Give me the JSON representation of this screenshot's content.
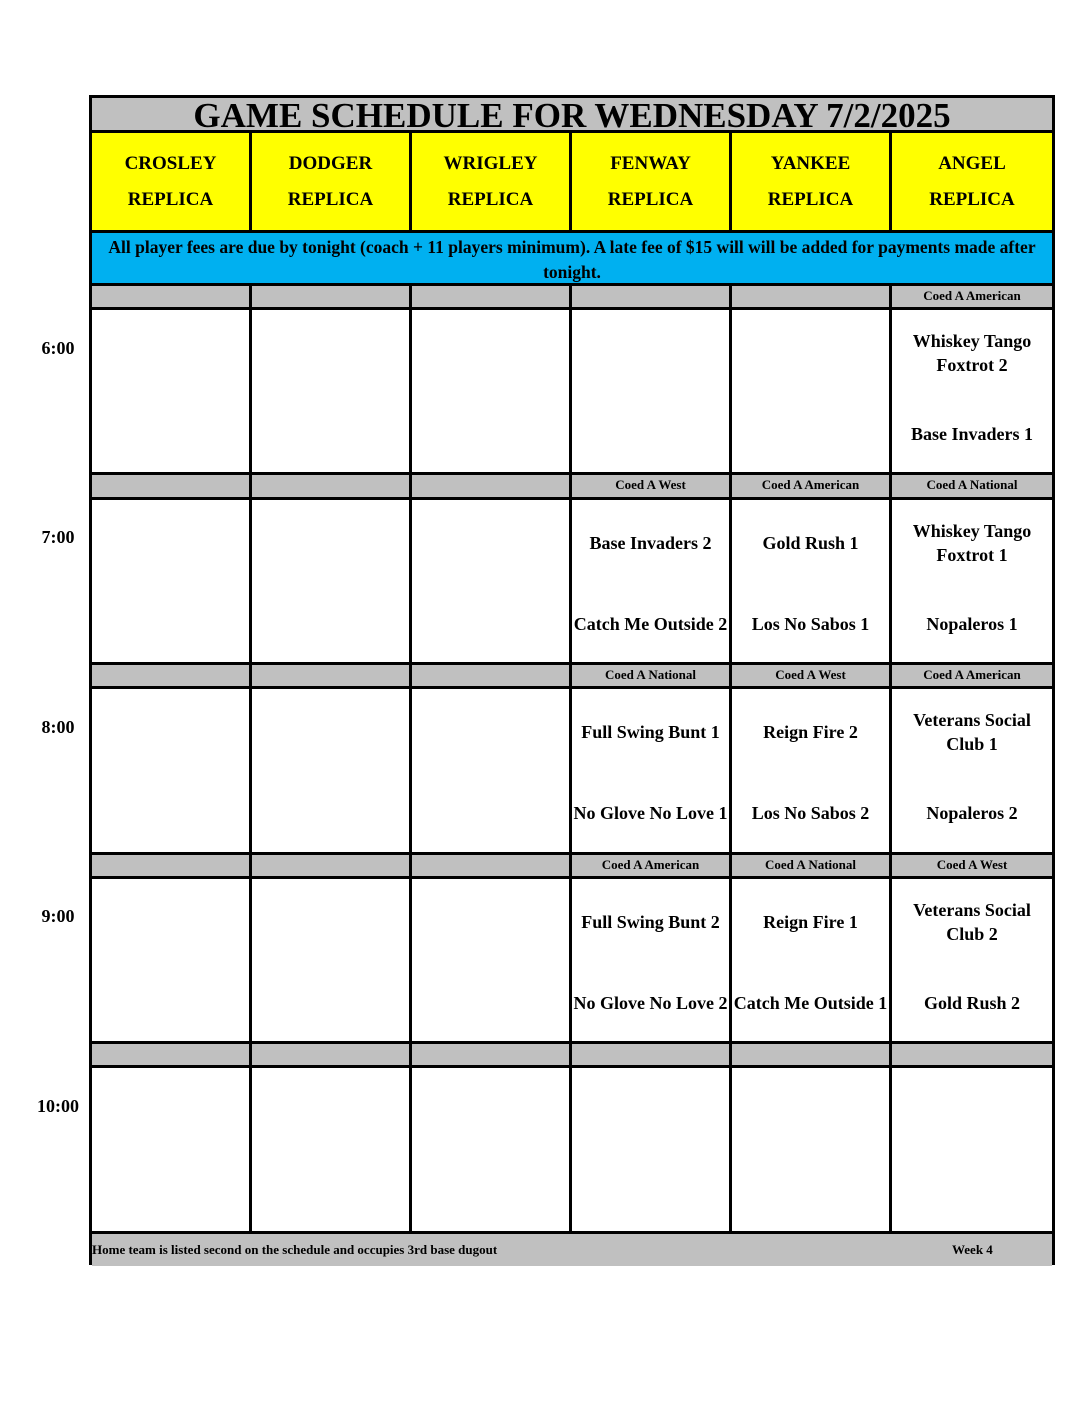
{
  "title": "GAME SCHEDULE FOR WEDNESDAY 7/2/2025",
  "fields": [
    {
      "name": "CROSLEY",
      "sub": "REPLICA"
    },
    {
      "name": "DODGER",
      "sub": "REPLICA"
    },
    {
      "name": "WRIGLEY",
      "sub": "REPLICA"
    },
    {
      "name": "FENWAY",
      "sub": "REPLICA"
    },
    {
      "name": "YANKEE",
      "sub": "REPLICA"
    },
    {
      "name": "ANGEL",
      "sub": "REPLICA"
    }
  ],
  "banner": "All player fees are due by tonight (coach + 11 players minimum). A late fee of $15 will will be added for payments made after tonight.",
  "slots": [
    {
      "time": "6:00",
      "cells": [
        {},
        {},
        {},
        {},
        {},
        {
          "division": "Coed A American",
          "team1": "Whiskey Tango Foxtrot 2",
          "team2": "Base Invaders 1"
        }
      ]
    },
    {
      "time": "7:00",
      "cells": [
        {},
        {},
        {},
        {
          "division": "Coed A West",
          "team1": "Base Invaders 2",
          "team2": "Catch Me Outside 2"
        },
        {
          "division": "Coed A American",
          "team1": "Gold Rush 1",
          "team2": "Los No Sabos 1"
        },
        {
          "division": "Coed A National",
          "team1": "Whiskey Tango Foxtrot 1",
          "team2": "Nopaleros 1"
        }
      ]
    },
    {
      "time": "8:00",
      "cells": [
        {},
        {},
        {},
        {
          "division": "Coed A National",
          "team1": "Full Swing Bunt 1",
          "team2": "No Glove No Love 1"
        },
        {
          "division": "Coed A West",
          "team1": "Reign Fire 2",
          "team2": "Los No Sabos 2"
        },
        {
          "division": "Coed A American",
          "team1": "Veterans Social Club 1",
          "team2": "Nopaleros 2"
        }
      ]
    },
    {
      "time": "9:00",
      "cells": [
        {},
        {},
        {},
        {
          "division": "Coed A American",
          "team1": "Full Swing Bunt 2",
          "team2": "No Glove No Love 2"
        },
        {
          "division": "Coed A National",
          "team1": "Reign Fire 1",
          "team2": "Catch Me Outside 1"
        },
        {
          "division": "Coed A West",
          "team1": "Veterans Social Club 2",
          "team2": "Gold Rush 2"
        }
      ]
    },
    {
      "time": "10:00",
      "cells": [
        {},
        {},
        {},
        {},
        {},
        {}
      ]
    }
  ],
  "footer": {
    "note": "Home team is listed second on the schedule and occupies 3rd base dugout",
    "week": "Week 4"
  },
  "colors": {
    "title_bg": "#c0c0c0",
    "field_bg": "#ffff00",
    "banner_bg": "#00b0f0"
  }
}
